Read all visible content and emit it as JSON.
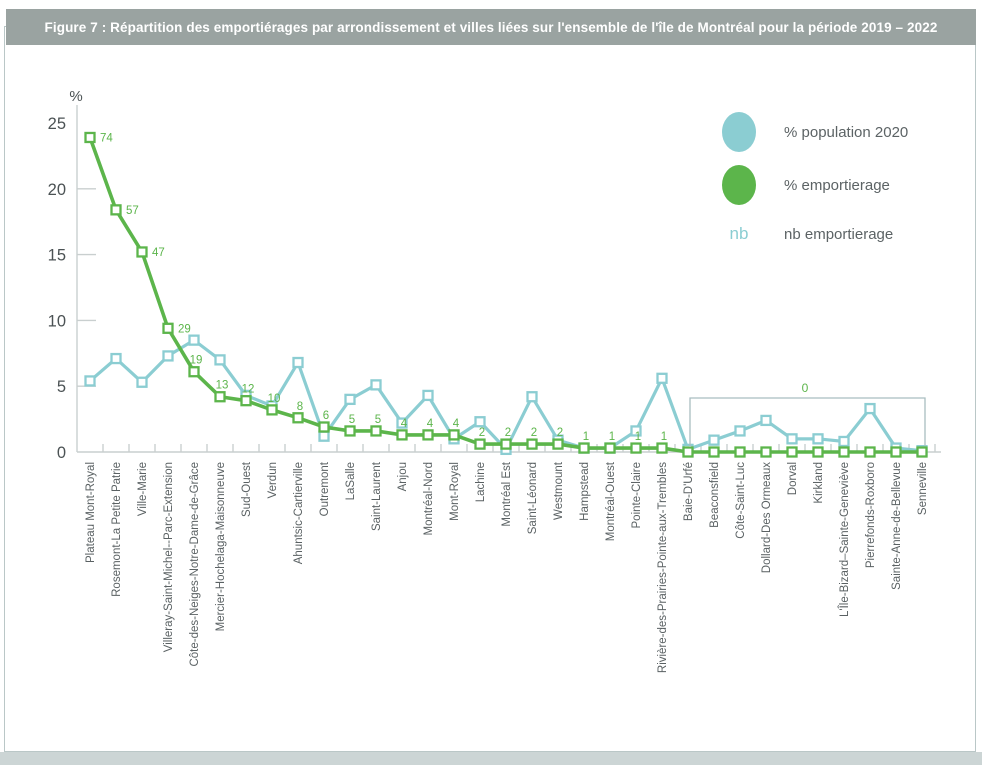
{
  "title": "Figure 7 : Répartition des emportiérages par arrondissement et villes liées sur l'ensemble de l'île de Montréal pour la période 2019 – 2022",
  "legend": {
    "population_label": "% population 2020",
    "emportierage_label": "% emportierage",
    "nb_symbol": "nb",
    "nb_label": "nb emportierage"
  },
  "colors": {
    "teal": "#8bcdd2",
    "green": "#5cb54b",
    "title_bar_bg": "#9aa3a1",
    "title_text": "#ffffff",
    "axis": "#c9cfcf",
    "tick_text": "#4b5254",
    "xlabel_text": "#5a6163",
    "legend_text": "#5c6365",
    "bracket": "#a9bec0",
    "bottom_strip": "#ccd5d5"
  },
  "chart_data": {
    "type": "line",
    "unit_label": "%",
    "y_ticks": [
      25,
      20,
      15,
      10,
      5,
      0
    ],
    "ylim": [
      0,
      25
    ],
    "grid": false,
    "legend_position": "top-right",
    "categories": [
      "Plateau Mont-Royal",
      "Rosemont-La Petite Patrie",
      "Ville-Marie",
      "Villeray-Saint-Michel--Parc-Extension",
      "Côte-des-Neiges-Notre-Dame-de-Grâce",
      "Mercier-Hochelaga-Maisonneuve",
      "Sud-Ouest",
      "Verdun",
      "Ahuntsic-Cartierville",
      "Outremont",
      "LaSalle",
      "Saint-Laurent",
      "Anjou",
      "Montréal-Nord",
      "Mont-Royal",
      "Lachine",
      "Montréal Est",
      "Saint-Léonard",
      "Westmount",
      "Hampstead",
      "Montréal-Ouest",
      "Pointe-Claire",
      "Rivière-des-Prairies-Pointe-aux-Trembles",
      "Baie-D'Urfé",
      "Beaconsfield",
      "Côte-Saint-Luc",
      "Dollard-Des Ormeaux",
      "Dorval",
      "Kirkland",
      "L'Île-Bizard–Sainte-Geneviève",
      "Pierrefonds-Roxboro",
      "Sainte-Anne-de-Bellevue",
      "Senneville"
    ],
    "series": [
      {
        "name": "% population 2020",
        "color_key": "teal",
        "values": [
          5.4,
          7.1,
          5.3,
          7.3,
          8.5,
          7.0,
          4.3,
          3.5,
          6.8,
          1.2,
          4.0,
          5.1,
          2.2,
          4.3,
          1.0,
          2.3,
          0.2,
          4.2,
          0.9,
          0.3,
          0.3,
          1.6,
          5.6,
          0.2,
          0.9,
          1.6,
          2.4,
          1.0,
          1.0,
          0.8,
          3.3,
          0.3,
          0.1
        ]
      },
      {
        "name": "% emportierage",
        "color_key": "green",
        "values": [
          23.9,
          18.4,
          15.2,
          9.4,
          6.1,
          4.2,
          3.9,
          3.2,
          2.6,
          1.9,
          1.6,
          1.6,
          1.3,
          1.3,
          1.3,
          0.6,
          0.6,
          0.6,
          0.6,
          0.3,
          0.3,
          0.3,
          0.3,
          0,
          0,
          0,
          0,
          0,
          0,
          0,
          0,
          0,
          0
        ]
      }
    ],
    "nb_emportierage": [
      74,
      57,
      47,
      29,
      19,
      13,
      12,
      10,
      8,
      6,
      5,
      5,
      4,
      4,
      4,
      2,
      2,
      2,
      2,
      1,
      1,
      1,
      1,
      0,
      0,
      0,
      0,
      0,
      0,
      0,
      0,
      0,
      0
    ],
    "zero_bracket": {
      "label": "0",
      "from_category": "Baie-D'Urfé",
      "to_category": "Senneville"
    }
  }
}
